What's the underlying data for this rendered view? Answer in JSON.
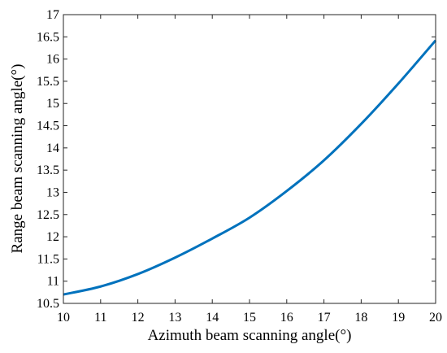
{
  "chart_data": {
    "type": "line",
    "title": "",
    "xlabel": "Azimuth beam scanning angle(°)",
    "ylabel": "Range beam scanning angle(°)",
    "xlim": [
      10,
      20
    ],
    "ylim": [
      10.5,
      17
    ],
    "x_ticks": [
      10,
      11,
      12,
      13,
      14,
      15,
      16,
      17,
      18,
      19,
      20
    ],
    "y_ticks": [
      10.5,
      11,
      11.5,
      12,
      12.5,
      13,
      13.5,
      14,
      14.5,
      15,
      15.5,
      16,
      16.5,
      17
    ],
    "x_tick_labels": [
      "10",
      "11",
      "12",
      "13",
      "14",
      "15",
      "16",
      "17",
      "18",
      "19",
      "20"
    ],
    "y_tick_labels": [
      "10.5",
      "11",
      "11.5",
      "12",
      "12.5",
      "13",
      "13.5",
      "14",
      "14.5",
      "15",
      "15.5",
      "16",
      "16.5",
      "17"
    ],
    "grid": false,
    "series": [
      {
        "color": "#0072BD",
        "x": [
          10,
          11,
          12,
          13,
          14,
          15,
          16,
          17,
          18,
          19,
          20
        ],
        "y": [
          10.7,
          10.88,
          11.16,
          11.53,
          11.96,
          12.43,
          13.03,
          13.72,
          14.54,
          15.45,
          16.42
        ]
      }
    ]
  }
}
